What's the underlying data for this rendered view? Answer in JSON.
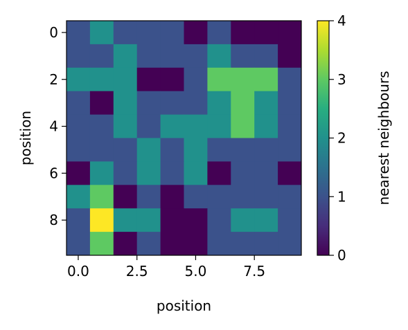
{
  "chart_data": {
    "type": "heatmap",
    "title": "",
    "xlabel": "position",
    "ylabel": "position",
    "x_ticks": [
      "0.0",
      "2.5",
      "5.0",
      "7.5"
    ],
    "x_tick_values": [
      0,
      2.5,
      5,
      7.5
    ],
    "y_ticks": [
      "0",
      "2",
      "4",
      "6",
      "8"
    ],
    "y_tick_values": [
      0,
      2,
      4,
      6,
      8
    ],
    "xlim": [
      -0.5,
      9.5
    ],
    "ylim": [
      9.5,
      -0.5
    ],
    "colormap": "viridis",
    "colorbar": {
      "label": "nearest neighbours",
      "ticks": [
        "0",
        "1",
        "2",
        "3",
        "4"
      ],
      "tick_values": [
        0,
        1,
        2,
        3,
        4
      ],
      "range": [
        0,
        4
      ]
    },
    "grid": false,
    "values": [
      [
        1,
        2,
        1,
        1,
        1,
        0,
        1,
        0,
        0,
        0
      ],
      [
        1,
        1,
        2,
        1,
        1,
        1,
        2,
        1,
        1,
        0
      ],
      [
        2,
        2,
        2,
        0,
        0,
        1,
        3,
        3,
        3,
        1
      ],
      [
        1,
        0,
        2,
        1,
        1,
        1,
        2,
        3,
        2,
        1
      ],
      [
        1,
        1,
        2,
        1,
        2,
        2,
        2,
        3,
        2,
        1
      ],
      [
        1,
        1,
        1,
        2,
        1,
        2,
        1,
        1,
        1,
        1
      ],
      [
        0,
        2,
        1,
        2,
        1,
        2,
        0,
        1,
        1,
        0
      ],
      [
        2,
        3,
        0,
        1,
        0,
        1,
        1,
        1,
        1,
        1
      ],
      [
        1,
        4,
        2,
        2,
        0,
        0,
        1,
        2,
        2,
        1
      ],
      [
        1,
        3,
        0,
        1,
        0,
        0,
        1,
        1,
        1,
        1
      ]
    ]
  }
}
